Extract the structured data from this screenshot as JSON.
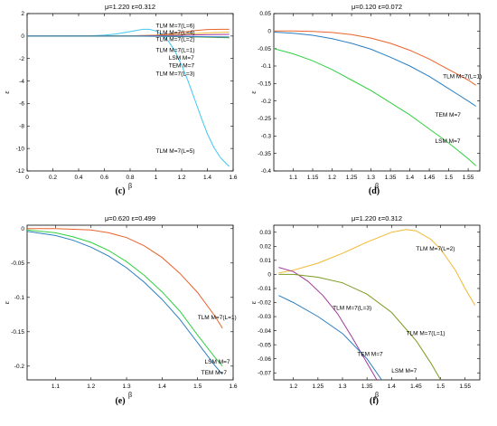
{
  "chart_data": [
    {
      "id": "c",
      "type": "line",
      "title": "μ=1.220  ε=0.312",
      "caption": "(c)",
      "xlabel": "β",
      "ylabel": "ε",
      "xlim": [
        0,
        1.6
      ],
      "ylim": [
        -12,
        2
      ],
      "xticks": [
        0,
        0.2,
        0.4,
        0.6,
        0.8,
        1,
        1.2,
        1.4,
        1.6
      ],
      "yticks": [
        2,
        0,
        -2,
        -4,
        -6,
        -8,
        -10,
        -12
      ],
      "series": [
        {
          "name": "TLM M=7(L=5)",
          "color": "#3fc8f0",
          "x": [
            0,
            0.3,
            0.5,
            0.6,
            0.7,
            0.8,
            0.9,
            0.95,
            1.0,
            1.05,
            1.1,
            1.15,
            1.2,
            1.25,
            1.3,
            1.35,
            1.4,
            1.45,
            1.5,
            1.55,
            1.57
          ],
          "y": [
            0,
            0.01,
            0.03,
            0.08,
            0.2,
            0.4,
            0.6,
            0.6,
            0.45,
            0.1,
            -0.5,
            -1.4,
            -2.6,
            -4.0,
            -5.6,
            -7.2,
            -8.7,
            -9.9,
            -10.8,
            -11.4,
            -11.6
          ]
        },
        {
          "name": "TLM M=7(L=6)",
          "color": "#e8632a",
          "x": [
            0,
            0.6,
            0.8,
            1.0,
            1.1,
            1.2,
            1.3,
            1.4,
            1.5,
            1.57
          ],
          "y": [
            0,
            0,
            0.02,
            0.08,
            0.18,
            0.33,
            0.48,
            0.58,
            0.6,
            0.6
          ]
        },
        {
          "name": "TLM M=7(L=4)",
          "color": "#f0b830",
          "x": [
            0,
            0.8,
            1.0,
            1.2,
            1.4,
            1.57
          ],
          "y": [
            0,
            0.01,
            0.05,
            0.15,
            0.28,
            0.35
          ]
        },
        {
          "name": "TLM M=7(L=2)",
          "color": "#a03a9a",
          "x": [
            0,
            0.8,
            1.0,
            1.2,
            1.4,
            1.57
          ],
          "y": [
            0,
            0,
            0.03,
            0.08,
            0.12,
            0.15
          ]
        },
        {
          "name": "TLM M=7(L=1)",
          "color": "#5aa030",
          "x": [
            0,
            0.8,
            1.0,
            1.2,
            1.4,
            1.57
          ],
          "y": [
            0,
            0,
            -0.02,
            -0.05,
            -0.1,
            -0.15
          ]
        },
        {
          "name": "TLM M=7(L=3)",
          "color": "#2a7ec0",
          "x": [
            0,
            0.8,
            1.0,
            1.2,
            1.4,
            1.57
          ],
          "y": [
            0,
            0,
            -0.01,
            -0.03,
            -0.06,
            -0.08
          ]
        }
      ],
      "annotations": [
        {
          "text": "TLM M=7(L=6)",
          "x": 1.0,
          "y": 0.75
        },
        {
          "text": "TLM M=7(L=4)",
          "x": 1.0,
          "y": 0.15
        },
        {
          "text": "TLM M=7(L=2)",
          "x": 1.0,
          "y": -0.45
        },
        {
          "text": "TLM M=7(L=1)",
          "x": 1.0,
          "y": -1.4
        },
        {
          "text": "LSM M=7",
          "x": 1.1,
          "y": -2.1
        },
        {
          "text": "TEM M=7",
          "x": 1.1,
          "y": -2.8
        },
        {
          "text": "TLM M=7(L=3)",
          "x": 1.0,
          "y": -3.5
        },
        {
          "text": "TLM M=7(L=5)",
          "x": 1.0,
          "y": -10.4
        }
      ]
    },
    {
      "id": "d",
      "type": "line",
      "title": "μ=0.120  ε=0.072",
      "caption": "(d)",
      "xlabel": "β",
      "ylabel": "ε",
      "xlim": [
        1.05,
        1.58
      ],
      "ylim": [
        -0.4,
        0.05
      ],
      "xticks": [
        1.1,
        1.15,
        1.2,
        1.25,
        1.3,
        1.35,
        1.4,
        1.45,
        1.5,
        1.55
      ],
      "yticks": [
        0.05,
        0,
        -0.05,
        -0.1,
        -0.15,
        -0.2,
        -0.25,
        -0.3,
        -0.35,
        -0.4
      ],
      "series": [
        {
          "name": "TLM M=7(L=1)",
          "color": "#e8632a",
          "x": [
            1.05,
            1.1,
            1.15,
            1.2,
            1.25,
            1.3,
            1.35,
            1.4,
            1.45,
            1.5,
            1.55,
            1.57
          ],
          "y": [
            0,
            0,
            -0.001,
            -0.004,
            -0.01,
            -0.02,
            -0.035,
            -0.055,
            -0.08,
            -0.11,
            -0.14,
            -0.155
          ]
        },
        {
          "name": "TEM M=7",
          "color": "#2a7ec0",
          "x": [
            1.05,
            1.1,
            1.15,
            1.2,
            1.25,
            1.3,
            1.35,
            1.4,
            1.45,
            1.5,
            1.55,
            1.57
          ],
          "y": [
            -0.003,
            -0.006,
            -0.012,
            -0.022,
            -0.035,
            -0.052,
            -0.075,
            -0.1,
            -0.13,
            -0.165,
            -0.2,
            -0.215
          ]
        },
        {
          "name": "LSM M=7",
          "color": "#30d040",
          "x": [
            1.05,
            1.1,
            1.15,
            1.2,
            1.25,
            1.3,
            1.35,
            1.4,
            1.45,
            1.5,
            1.55,
            1.57
          ],
          "y": [
            -0.05,
            -0.065,
            -0.085,
            -0.11,
            -0.14,
            -0.17,
            -0.205,
            -0.24,
            -0.28,
            -0.32,
            -0.365,
            -0.385
          ]
        }
      ],
      "annotations": [
        {
          "text": "TLM M=7(L=1)",
          "x": 1.485,
          "y": -0.135
        },
        {
          "text": "TEM M=7",
          "x": 1.465,
          "y": -0.245
        },
        {
          "text": "LSM M=7",
          "x": 1.465,
          "y": -0.32
        }
      ]
    },
    {
      "id": "e",
      "type": "line",
      "title": "μ=0.620  ε=0.499",
      "caption": "(e)",
      "xlabel": "β",
      "ylabel": "ε",
      "xlim": [
        1.02,
        1.6
      ],
      "ylim": [
        -0.22,
        0.005
      ],
      "xticks": [
        1.1,
        1.2,
        1.3,
        1.4,
        1.5,
        1.6
      ],
      "yticks": [
        0,
        -0.05,
        -0.1,
        -0.15,
        -0.2
      ],
      "series": [
        {
          "name": "TLM M=7(L=1)",
          "color": "#e8632a",
          "x": [
            1.02,
            1.1,
            1.2,
            1.25,
            1.3,
            1.35,
            1.4,
            1.45,
            1.5,
            1.55,
            1.57
          ],
          "y": [
            0,
            0,
            -0.002,
            -0.006,
            -0.013,
            -0.025,
            -0.042,
            -0.065,
            -0.093,
            -0.128,
            -0.145
          ]
        },
        {
          "name": "LSM M=7",
          "color": "#30d040",
          "x": [
            1.02,
            1.1,
            1.15,
            1.2,
            1.25,
            1.3,
            1.35,
            1.4,
            1.45,
            1.5,
            1.55,
            1.57
          ],
          "y": [
            -0.002,
            -0.006,
            -0.012,
            -0.02,
            -0.032,
            -0.048,
            -0.068,
            -0.092,
            -0.12,
            -0.155,
            -0.188,
            -0.2
          ]
        },
        {
          "name": "TEM M=7",
          "color": "#2a7ec0",
          "x": [
            1.02,
            1.1,
            1.15,
            1.2,
            1.25,
            1.3,
            1.35,
            1.4,
            1.45,
            1.5,
            1.55,
            1.57
          ],
          "y": [
            -0.004,
            -0.01,
            -0.017,
            -0.027,
            -0.04,
            -0.057,
            -0.078,
            -0.103,
            -0.132,
            -0.166,
            -0.2,
            -0.212
          ]
        }
      ],
      "annotations": [
        {
          "text": "TLM M=7(L=1)",
          "x": 1.5,
          "y": -0.132
        },
        {
          "text": "LSM M=7",
          "x": 1.52,
          "y": -0.196
        },
        {
          "text": "TEM M=7",
          "x": 1.51,
          "y": -0.212
        }
      ]
    },
    {
      "id": "f",
      "type": "line",
      "title": "μ=1.220  ε=0.312",
      "caption": "(f)",
      "xlabel": "β",
      "ylabel": "ε",
      "xlim": [
        1.16,
        1.58
      ],
      "ylim": [
        -0.075,
        0.035
      ],
      "xticks": [
        1.2,
        1.25,
        1.3,
        1.35,
        1.4,
        1.45,
        1.5,
        1.55
      ],
      "yticks": [
        0.03,
        0.02,
        0.01,
        0,
        -0.01,
        -0.02,
        -0.03,
        -0.04,
        -0.05,
        -0.06,
        -0.07
      ],
      "series": [
        {
          "name": "TLM M=7(L=2)",
          "color": "#f0b830",
          "x": [
            1.17,
            1.2,
            1.25,
            1.3,
            1.35,
            1.4,
            1.43,
            1.45,
            1.48,
            1.5,
            1.53,
            1.55,
            1.57
          ],
          "y": [
            0.001,
            0.003,
            0.008,
            0.015,
            0.023,
            0.03,
            0.032,
            0.031,
            0.025,
            0.018,
            0.003,
            -0.01,
            -0.022
          ]
        },
        {
          "name": "TLM M=7(L=3)",
          "color": "#a03a9a",
          "x": [
            1.17,
            1.2,
            1.23,
            1.26,
            1.29,
            1.32,
            1.35,
            1.37
          ],
          "y": [
            0.005,
            0.002,
            -0.005,
            -0.015,
            -0.028,
            -0.045,
            -0.063,
            -0.075
          ]
        },
        {
          "name": "TLM M=7(L=1)",
          "color": "#7a9a20",
          "x": [
            1.17,
            1.2,
            1.25,
            1.3,
            1.35,
            1.4,
            1.45,
            1.48,
            1.5
          ],
          "y": [
            0,
            0,
            -0.002,
            -0.006,
            -0.014,
            -0.027,
            -0.047,
            -0.063,
            -0.075
          ]
        },
        {
          "name": "TEM M=7",
          "color": "#2a7ec0",
          "x": [
            1.17,
            1.2,
            1.25,
            1.3,
            1.35,
            1.38
          ],
          "y": [
            -0.015,
            -0.02,
            -0.03,
            -0.042,
            -0.06,
            -0.075
          ]
        }
      ],
      "annotations": [
        {
          "text": "TLM M=7(L=2)",
          "x": 1.45,
          "y": 0.017
        },
        {
          "text": "TLM M=7(L=3)",
          "x": 1.28,
          "y": -0.025
        },
        {
          "text": "TLM M=7(L=1)",
          "x": 1.43,
          "y": -0.043
        },
        {
          "text": "TEM M=7",
          "x": 1.33,
          "y": -0.058
        },
        {
          "text": "LSM M=7",
          "x": 1.4,
          "y": -0.07
        }
      ]
    }
  ]
}
